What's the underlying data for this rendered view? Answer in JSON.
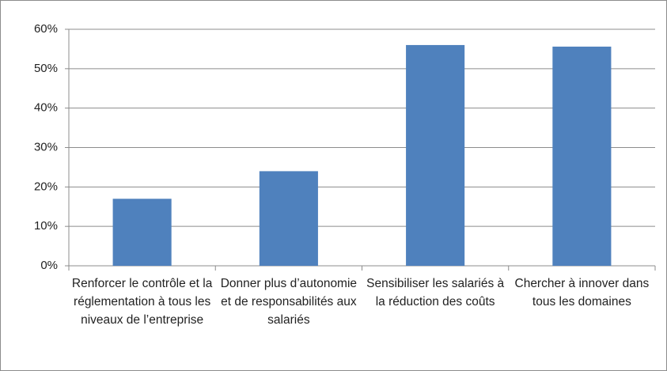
{
  "chart_data": {
    "type": "bar",
    "categories": [
      "Renforcer le contrôle et la réglementation à tous les niveaux de l’entreprise",
      "Donner plus d’autonomie et de responsabilités aux salariés",
      "Sensibiliser les salariés à la réduction des coûts",
      "Chercher à innover dans tous les domaines"
    ],
    "values": [
      17,
      24,
      56,
      55.6
    ],
    "color": "#4f81bd",
    "ylim": [
      0,
      60
    ],
    "yticks": [
      {
        "value": 0,
        "label": "0%"
      },
      {
        "value": 10,
        "label": "10%"
      },
      {
        "value": 20,
        "label": "20%"
      },
      {
        "value": 30,
        "label": "30%"
      },
      {
        "value": 40,
        "label": "40%"
      },
      {
        "value": 50,
        "label": "50%"
      },
      {
        "value": 60,
        "label": "60%"
      }
    ],
    "grid": true
  }
}
